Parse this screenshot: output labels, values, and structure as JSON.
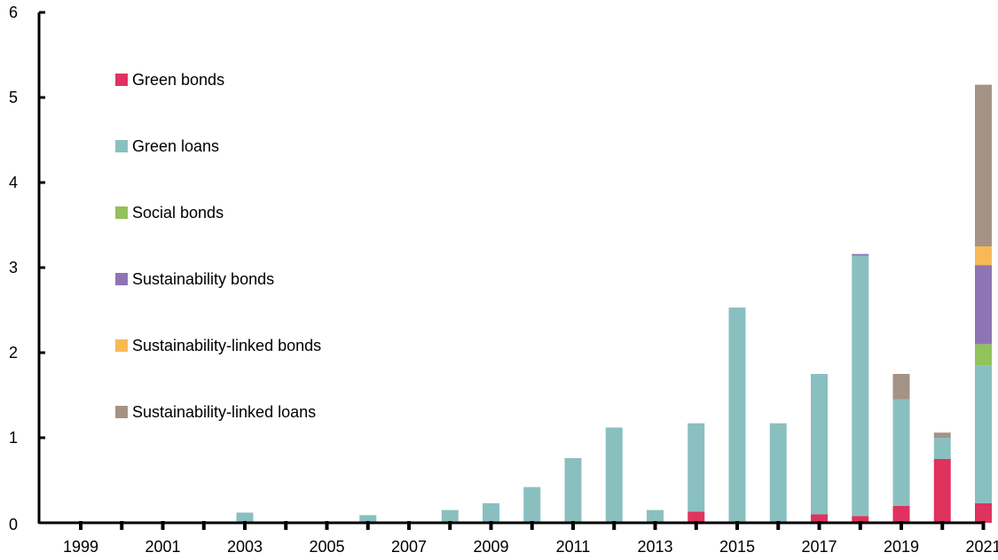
{
  "chart_data": {
    "type": "bar",
    "stacked": true,
    "title": "",
    "xlabel": "",
    "ylabel": "",
    "ylim": [
      0,
      6
    ],
    "yticks": [
      "0",
      "1",
      "2",
      "3",
      "4",
      "5",
      "6"
    ],
    "categories": [
      "1999",
      "2000",
      "2001",
      "2002",
      "2003",
      "2004",
      "2005",
      "2006",
      "2007",
      "2008",
      "2009",
      "2010",
      "2011",
      "2012",
      "2013",
      "2014",
      "2015",
      "2016",
      "2017",
      "2018",
      "2019",
      "2020",
      "2021"
    ],
    "xtick_labels": [
      "1999",
      "2001",
      "2003",
      "2005",
      "2007",
      "2009",
      "2011",
      "2013",
      "2015",
      "2017",
      "2019",
      "2021"
    ],
    "grid": false,
    "legend_position": "top-left",
    "series": [
      {
        "name": "Green bonds",
        "color": "#e0325f",
        "values": [
          0,
          0,
          0,
          0,
          0,
          0,
          0,
          0,
          0,
          0,
          0,
          0,
          0,
          0,
          0,
          0.13,
          0,
          0,
          0.1,
          0.08,
          0.2,
          0.75,
          0.23
        ]
      },
      {
        "name": "Green loans",
        "color": "#8abfc0",
        "values": [
          0,
          0,
          0,
          0,
          0.12,
          0,
          0,
          0.09,
          0,
          0.15,
          0.23,
          0.42,
          0.76,
          1.12,
          0.15,
          1.04,
          2.53,
          1.17,
          1.65,
          3.06,
          1.25,
          0.25,
          1.62
        ]
      },
      {
        "name": "Social bonds",
        "color": "#92c25a",
        "values": [
          0,
          0,
          0,
          0,
          0,
          0,
          0,
          0,
          0,
          0,
          0,
          0,
          0,
          0,
          0,
          0,
          0,
          0,
          0,
          0,
          0,
          0,
          0.25
        ]
      },
      {
        "name": "Sustainability bonds",
        "color": "#8f74b5",
        "values": [
          0,
          0,
          0,
          0,
          0,
          0,
          0,
          0,
          0,
          0,
          0,
          0,
          0,
          0,
          0,
          0,
          0,
          0,
          0,
          0.02,
          0,
          0,
          0.93
        ]
      },
      {
        "name": "Sustainability-linked bonds",
        "color": "#f7b955",
        "values": [
          0,
          0,
          0,
          0,
          0,
          0,
          0,
          0,
          0,
          0,
          0,
          0,
          0,
          0,
          0,
          0,
          0,
          0,
          0,
          0,
          0,
          0,
          0.22
        ]
      },
      {
        "name": "Sustainability-linked loans",
        "color": "#a49385",
        "values": [
          0,
          0,
          0,
          0,
          0,
          0,
          0,
          0,
          0,
          0,
          0,
          0,
          0,
          0,
          0,
          0,
          0,
          0,
          0,
          0,
          0.3,
          0.06,
          1.9
        ]
      }
    ]
  }
}
